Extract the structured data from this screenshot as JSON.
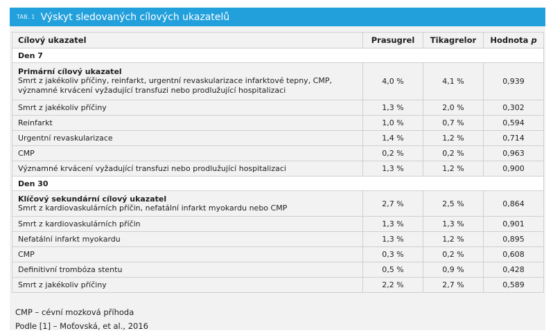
{
  "header": {
    "tab": "TAB. 1",
    "title": "Výskyt sledovaných cílových ukazatelů"
  },
  "columns": [
    "Cílový ukazatel",
    "Prasugrel",
    "Tikagrelor",
    "Hodnota ",
    "p"
  ],
  "sections": {
    "day7": "Den 7",
    "day30": "Den 30"
  },
  "rows7": [
    {
      "title": "Primární cílový ukazatel",
      "label": "Smrt z jakékoliv příčiny, reinfarkt, urgentní revaskularizace infarktové tepny, CMP, významné krvácení vyžadující transfuzi nebo prodlužující hospitalizaci",
      "prasugrel": "4,0 %",
      "tikagrelor": "4,1 %",
      "p": "0,939"
    },
    {
      "label": "Smrt z jakékoliv příčiny",
      "prasugrel": "1,3 %",
      "tikagrelor": "2,0 %",
      "p": "0,302"
    },
    {
      "label": "Reinfarkt",
      "prasugrel": "1,0 %",
      "tikagrelor": "0,7 %",
      "p": "0,594"
    },
    {
      "label": "Urgentní revaskularizace",
      "prasugrel": "1,4 %",
      "tikagrelor": "1,2 %",
      "p": "0,714"
    },
    {
      "label": "CMP",
      "prasugrel": "0,2 %",
      "tikagrelor": "0,2 %",
      "p": "0,963"
    },
    {
      "label": "Významné krvácení vyžadující transfuzi nebo prodlužující hospitalizaci",
      "prasugrel": "1,3 %",
      "tikagrelor": "1,2 %",
      "p": "0,900"
    }
  ],
  "rows30": [
    {
      "title": "Klíčový sekundární cílový ukazatel",
      "label": "Smrt z kardiovaskulárních příčin, nefatální infarkt myokardu nebo CMP",
      "prasugrel": "2,7 %",
      "tikagrelor": "2,5 %",
      "p": "0,864"
    },
    {
      "label": "Smrt z kardiovaskulárních příčin",
      "prasugrel": "1,3 %",
      "tikagrelor": "1,3 %",
      "p": "0,901"
    },
    {
      "label": "Nefatální infarkt myokardu",
      "prasugrel": "1,3 %",
      "tikagrelor": "1,2 %",
      "p": "0,895"
    },
    {
      "label": "CMP",
      "prasugrel": "0,3 %",
      "tikagrelor": "0,2 %",
      "p": "0,608"
    },
    {
      "label": "Definitivní trombóza stentu",
      "prasugrel": "0,5 %",
      "tikagrelor": "0,9 %",
      "p": "0,428"
    },
    {
      "label": "Smrt z jakékoliv příčiny",
      "prasugrel": "2,2 %",
      "tikagrelor": "2,7 %",
      "p": "0,589"
    }
  ],
  "footnotes": {
    "abbr": "CMP – cévní mozková příhoda",
    "source": "Podle [1] – Moťovská, et al., 2016"
  }
}
